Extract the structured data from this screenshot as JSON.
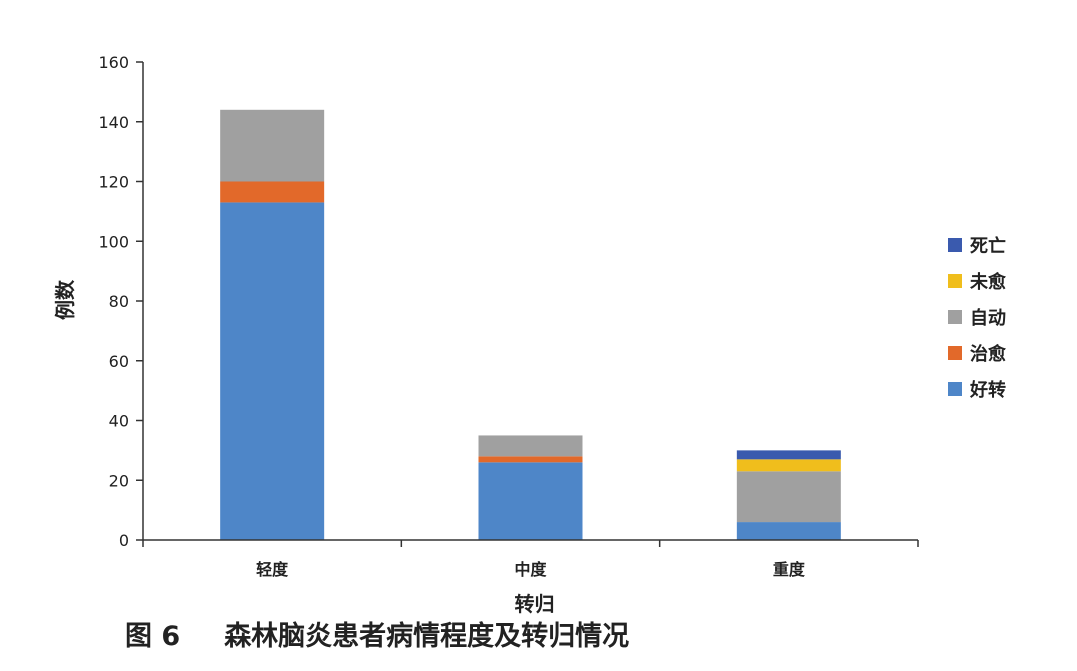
{
  "figure": {
    "number": "图 6",
    "caption": "森林脑炎患者病情程度及转归情况"
  },
  "chart_data": {
    "type": "bar",
    "stacked": true,
    "categories": [
      "轻度",
      "中度",
      "重度"
    ],
    "xlabel": "转归",
    "ylabel": "例数",
    "ylim": [
      0,
      160
    ],
    "yticks": [
      0,
      20,
      40,
      60,
      80,
      100,
      120,
      140,
      160
    ],
    "grid": false,
    "legend_position": "right",
    "series": [
      {
        "name": "好转",
        "color": "#4E86C8",
        "values": [
          113,
          26,
          6
        ]
      },
      {
        "name": "治愈",
        "color": "#E2692A",
        "values": [
          7,
          2,
          0
        ]
      },
      {
        "name": "自动",
        "color": "#A0A0A0",
        "values": [
          24,
          7,
          17
        ]
      },
      {
        "name": "未愈",
        "color": "#F0BE1C",
        "values": [
          0,
          0,
          4
        ]
      },
      {
        "name": "死亡",
        "color": "#3A5AAE",
        "values": [
          0,
          0,
          3
        ]
      }
    ]
  }
}
